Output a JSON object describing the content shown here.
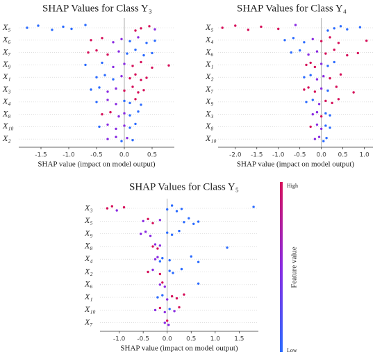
{
  "chart_data": [
    {
      "type": "beeswarm",
      "title": "SHAP Values for Class Y₃",
      "xlabel": "SHAP value (impact on model output)",
      "xlim": [
        -1.9,
        0.9
      ],
      "xticks": [
        -1.5,
        {
          "value": -1,
          "label": "-1.0"
        },
        -0.5,
        {
          "value": 0,
          "label": "0.0"
        },
        0.5
      ],
      "rows": [
        {
          "label": "X₅",
          "values": [
            -1.75,
            -1.55,
            -1.3,
            -1.1,
            -0.95,
            -0.7,
            0.2,
            0.3,
            0.45,
            0.55
          ],
          "colors": [
            "#2b6bff",
            "#2b6bff",
            "#2b6bff",
            "#2b6bff",
            "#2b6bff",
            "#2b6bff",
            "#d6105a",
            "#d6105a",
            "#d6105a",
            "#8a2be2"
          ]
        },
        {
          "label": "X₆",
          "values": [
            -0.6,
            -0.4,
            -0.2,
            -0.05,
            0.1,
            0.25,
            0.4,
            0.55
          ],
          "colors": [
            "#d6105a",
            "#d6105a",
            "#8a2be2",
            "#8a2be2",
            "#2b6bff",
            "#8a2be2",
            "#2b6bff",
            "#2b6bff"
          ]
        },
        {
          "label": "X₇",
          "values": [
            -0.65,
            -0.5,
            -0.3,
            -0.1,
            0.05,
            0.2,
            0.35,
            0.5
          ],
          "colors": [
            "#d6105a",
            "#d6105a",
            "#d6105a",
            "#8a2be2",
            "#2b6bff",
            "#2b6bff",
            "#2b6bff",
            "#2b6bff"
          ]
        },
        {
          "label": "X₉",
          "values": [
            -0.7,
            -0.4,
            -0.2,
            0.0,
            0.15,
            0.3,
            0.5,
            0.8
          ],
          "colors": [
            "#2b6bff",
            "#2b6bff",
            "#8a2be2",
            "#8a2be2",
            "#d6105a",
            "#d6105a",
            "#d6105a",
            "#d6105a"
          ]
        },
        {
          "label": "X₁",
          "values": [
            -0.5,
            -0.35,
            -0.2,
            -0.05,
            0.1,
            0.2,
            0.3,
            0.4
          ],
          "colors": [
            "#2b6bff",
            "#2b6bff",
            "#2b6bff",
            "#8a2be2",
            "#d6105a",
            "#d6105a",
            "#d6105a",
            "#d6105a"
          ]
        },
        {
          "label": "X₃",
          "values": [
            -0.6,
            -0.45,
            -0.3,
            -0.15,
            0.0,
            0.15,
            0.25,
            0.35
          ],
          "colors": [
            "#2b6bff",
            "#2b6bff",
            "#8a2be2",
            "#8a2be2",
            "#d6105a",
            "#d6105a",
            "#d6105a",
            "#d6105a"
          ]
        },
        {
          "label": "X₄",
          "values": [
            -0.5,
            -0.3,
            -0.15,
            0.0,
            0.1,
            0.2,
            0.3
          ],
          "colors": [
            "#2b6bff",
            "#8a2be2",
            "#8a2be2",
            "#2b6bff",
            "#2b6bff",
            "#d6105a",
            "#2b6bff"
          ]
        },
        {
          "label": "X₈",
          "values": [
            -0.4,
            -0.25,
            -0.1,
            0.0,
            0.1,
            0.25
          ],
          "colors": [
            "#d6105a",
            "#d6105a",
            "#8a2be2",
            "#8a2be2",
            "#2b6bff",
            "#2b6bff"
          ]
        },
        {
          "label": "X₁₀",
          "values": [
            -0.45,
            -0.3,
            -0.15,
            0.0,
            0.1,
            0.2
          ],
          "colors": [
            "#2b6bff",
            "#8a2be2",
            "#8a2be2",
            "#8a2be2",
            "#2b6bff",
            "#2b6bff"
          ]
        },
        {
          "label": "X₂",
          "values": [
            -0.3,
            -0.15,
            -0.05,
            0.05,
            0.15
          ],
          "colors": [
            "#8a2be2",
            "#8a2be2",
            "#2b6bff",
            "#8a2be2",
            "#2b6bff"
          ]
        }
      ]
    },
    {
      "type": "beeswarm",
      "title": "SHAP Values for Class Y₄",
      "xlabel": "SHAP value (impact on model output)",
      "xlim": [
        -2.4,
        1.2
      ],
      "xticks": [
        {
          "value": -2,
          "label": "-2.0"
        },
        -1.5,
        {
          "value": -1,
          "label": "-1.0"
        },
        -0.5,
        {
          "value": 0,
          "label": "0.0"
        },
        0.5,
        {
          "value": 1,
          "label": "1.0"
        }
      ],
      "rows": [
        {
          "label": "X₅",
          "values": [
            -2.3,
            -2.0,
            -1.7,
            -1.4,
            -1.0,
            -0.6,
            0.15,
            0.3,
            0.45,
            0.6,
            0.9
          ],
          "colors": [
            "#d6105a",
            "#d6105a",
            "#d6105a",
            "#d6105a",
            "#d6105a",
            "#8a2be2",
            "#2b6bff",
            "#2b6bff",
            "#2b6bff",
            "#2b6bff",
            "#2b6bff"
          ]
        },
        {
          "label": "X₄",
          "values": [
            -0.85,
            -0.65,
            -0.4,
            -0.2,
            0.0,
            0.2,
            0.4,
            1.05
          ],
          "colors": [
            "#2b6bff",
            "#2b6bff",
            "#2b6bff",
            "#8a2be2",
            "#d6105a",
            "#d6105a",
            "#d6105a",
            "#d6105a"
          ]
        },
        {
          "label": "X₆",
          "values": [
            -0.7,
            -0.5,
            -0.3,
            -0.1,
            0.1,
            0.3,
            0.6,
            0.85
          ],
          "colors": [
            "#2b6bff",
            "#2b6bff",
            "#8a2be2",
            "#8a2be2",
            "#d6105a",
            "#d6105a",
            "#d6105a",
            "#d6105a"
          ]
        },
        {
          "label": "X₁",
          "values": [
            -0.35,
            -0.25,
            -0.15,
            0.0,
            0.15,
            0.3
          ],
          "colors": [
            "#d6105a",
            "#d6105a",
            "#d6105a",
            "#8a2be2",
            "#2b6bff",
            "#2b6bff"
          ]
        },
        {
          "label": "X₂",
          "values": [
            -0.4,
            -0.25,
            -0.1,
            0.05,
            0.2,
            0.45
          ],
          "colors": [
            "#2b6bff",
            "#2b6bff",
            "#8a2be2",
            "#8a2be2",
            "#d6105a",
            "#d6105a"
          ]
        },
        {
          "label": "X₇",
          "values": [
            -0.4,
            -0.3,
            -0.15,
            0.0,
            0.15,
            0.35,
            0.75
          ],
          "colors": [
            "#d6105a",
            "#d6105a",
            "#d6105a",
            "#8a2be2",
            "#2b6bff",
            "#d6105a",
            "#d6105a"
          ]
        },
        {
          "label": "X₉",
          "values": [
            -0.35,
            -0.2,
            -0.05,
            0.1,
            0.25,
            0.4
          ],
          "colors": [
            "#2b6bff",
            "#2b6bff",
            "#8a2be2",
            "#d6105a",
            "#d6105a",
            "#d6105a"
          ]
        },
        {
          "label": "X₃",
          "values": [
            -0.2,
            -0.1,
            0.0,
            0.1,
            0.2
          ],
          "colors": [
            "#8a2be2",
            "#8a2be2",
            "#d6105a",
            "#2b6bff",
            "#2b6bff"
          ]
        },
        {
          "label": "X₈",
          "values": [
            -0.25,
            -0.1,
            0.0,
            0.1,
            0.2
          ],
          "colors": [
            "#d6105a",
            "#8a2be2",
            "#8a2be2",
            "#2b6bff",
            "#2b6bff"
          ]
        },
        {
          "label": "X₁₀",
          "values": [
            -0.15,
            -0.05,
            0.05,
            0.12
          ],
          "colors": [
            "#8a2be2",
            "#8a2be2",
            "#2b6bff",
            "#2b6bff"
          ]
        }
      ]
    },
    {
      "type": "beeswarm",
      "title": "SHAP Values for Class Y₅",
      "xlabel": "SHAP value (impact on model output)",
      "xlim": [
        -1.4,
        1.9
      ],
      "xticks": [
        {
          "value": -1,
          "label": "-1.0"
        },
        -0.5,
        {
          "value": 0,
          "label": "0.0"
        },
        0.5,
        {
          "value": 1,
          "label": "1.0"
        },
        1.5
      ],
      "rows": [
        {
          "label": "X₃",
          "values": [
            -1.25,
            -1.15,
            -1.05,
            -0.9,
            0.0,
            0.1,
            0.2,
            0.3,
            1.8
          ],
          "colors": [
            "#d6105a",
            "#d6105a",
            "#8a2be2",
            "#d6105a",
            "#2b6bff",
            "#2b6bff",
            "#2b6bff",
            "#2b6bff",
            "#2b6bff"
          ]
        },
        {
          "label": "X₅",
          "values": [
            -0.5,
            -0.4,
            -0.3,
            -0.15,
            0.35,
            0.45,
            0.55,
            0.65
          ],
          "colors": [
            "#8a2be2",
            "#d6105a",
            "#d6105a",
            "#8a2be2",
            "#2b6bff",
            "#2b6bff",
            "#2b6bff",
            "#2b6bff"
          ]
        },
        {
          "label": "X₉",
          "values": [
            -0.55,
            -0.45,
            -0.35,
            0.0,
            0.1,
            0.25
          ],
          "colors": [
            "#8a2be2",
            "#8a2be2",
            "#8a2be2",
            "#2b6bff",
            "#2b6bff",
            "#2b6bff"
          ]
        },
        {
          "label": "X₈",
          "values": [
            -0.3,
            -0.25,
            -0.2,
            -0.15,
            1.25
          ],
          "colors": [
            "#d6105a",
            "#8a2be2",
            "#d6105a",
            "#8a2be2",
            "#2b6bff"
          ]
        },
        {
          "label": "X₄",
          "values": [
            -0.25,
            -0.2,
            -0.15,
            -0.1,
            0.05,
            0.5,
            0.65
          ],
          "colors": [
            "#8a2be2",
            "#8a2be2",
            "#2b6bff",
            "#2b6bff",
            "#2b6bff",
            "#2b6bff",
            "#2b6bff"
          ]
        },
        {
          "label": "X₂",
          "values": [
            -0.4,
            -0.3,
            -0.15,
            0.05,
            0.12,
            0.3
          ],
          "colors": [
            "#d6105a",
            "#8a2be2",
            "#d6105a",
            "#2b6bff",
            "#2b6bff",
            "#2b6bff"
          ]
        },
        {
          "label": "X₆",
          "values": [
            -0.15,
            -0.1,
            -0.05,
            0.65
          ],
          "colors": [
            "#8a2be2",
            "#d6105a",
            "#8a2be2",
            "#2b6bff"
          ]
        },
        {
          "label": "X₁",
          "values": [
            -0.2,
            -0.1,
            0.0,
            0.1,
            0.2,
            0.35
          ],
          "colors": [
            "#2b6bff",
            "#2b6bff",
            "#8a2be2",
            "#d6105a",
            "#d6105a",
            "#d6105a"
          ]
        },
        {
          "label": "X₁₀",
          "values": [
            -0.25,
            -0.15,
            -0.05,
            0.05,
            0.15,
            0.25
          ],
          "colors": [
            "#8a2be2",
            "#d6105a",
            "#8a2be2",
            "#2b6bff",
            "#8a2be2",
            "#d6105a"
          ]
        },
        {
          "label": "X₇",
          "values": [
            -0.05,
            0.0,
            0.03
          ],
          "colors": [
            "#8a2be2",
            "#d6105a",
            "#8a2be2"
          ]
        }
      ],
      "colorbar": {
        "high": "High",
        "low": "Low",
        "label": "Feature value",
        "colors": [
          "#d6105a",
          "#8a2be2",
          "#2b6bff"
        ]
      }
    }
  ]
}
